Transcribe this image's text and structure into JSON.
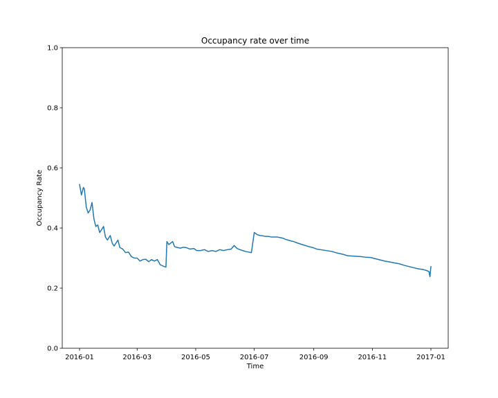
{
  "chart_data": {
    "type": "line",
    "title": "Occupancy rate over time",
    "xlabel": "Time",
    "ylabel": "Occupancy Rate",
    "ylim": [
      0.0,
      1.0
    ],
    "xlim": [
      "2015-12-14",
      "2017-01-19"
    ],
    "yticks": [
      "0.0",
      "0.2",
      "0.4",
      "0.6",
      "0.8",
      "1.0"
    ],
    "ytick_values": [
      0.0,
      0.2,
      0.4,
      0.6,
      0.8,
      1.0
    ],
    "xticks": [
      "2016-01",
      "2016-03",
      "2016-05",
      "2016-07",
      "2016-09",
      "2016-11",
      "2017-01"
    ],
    "xtick_dates": [
      "2016-01-01",
      "2016-03-01",
      "2016-05-01",
      "2016-07-01",
      "2016-09-01",
      "2016-11-01",
      "2017-01-01"
    ],
    "grid": false,
    "series": [
      {
        "color": "#1f77b4",
        "points": [
          [
            "2016-01-01",
            0.545
          ],
          [
            "2016-01-03",
            0.51
          ],
          [
            "2016-01-05",
            0.535
          ],
          [
            "2016-01-06",
            0.53
          ],
          [
            "2016-01-08",
            0.47
          ],
          [
            "2016-01-10",
            0.45
          ],
          [
            "2016-01-12",
            0.46
          ],
          [
            "2016-01-14",
            0.485
          ],
          [
            "2016-01-16",
            0.43
          ],
          [
            "2016-01-18",
            0.405
          ],
          [
            "2016-01-20",
            0.41
          ],
          [
            "2016-01-22",
            0.385
          ],
          [
            "2016-01-24",
            0.395
          ],
          [
            "2016-01-26",
            0.405
          ],
          [
            "2016-01-28",
            0.37
          ],
          [
            "2016-01-30",
            0.36
          ],
          [
            "2016-02-02",
            0.375
          ],
          [
            "2016-02-04",
            0.35
          ],
          [
            "2016-02-06",
            0.34
          ],
          [
            "2016-02-08",
            0.35
          ],
          [
            "2016-02-10",
            0.36
          ],
          [
            "2016-02-12",
            0.335
          ],
          [
            "2016-02-15",
            0.33
          ],
          [
            "2016-02-18",
            0.318
          ],
          [
            "2016-02-21",
            0.32
          ],
          [
            "2016-02-24",
            0.305
          ],
          [
            "2016-02-27",
            0.3
          ],
          [
            "2016-03-01",
            0.3
          ],
          [
            "2016-03-04",
            0.29
          ],
          [
            "2016-03-07",
            0.295
          ],
          [
            "2016-03-10",
            0.296
          ],
          [
            "2016-03-13",
            0.288
          ],
          [
            "2016-03-16",
            0.295
          ],
          [
            "2016-03-19",
            0.29
          ],
          [
            "2016-03-22",
            0.295
          ],
          [
            "2016-03-25",
            0.278
          ],
          [
            "2016-03-27",
            0.275
          ],
          [
            "2016-03-29",
            0.272
          ],
          [
            "2016-03-31",
            0.27
          ],
          [
            "2016-04-01",
            0.355
          ],
          [
            "2016-04-03",
            0.345
          ],
          [
            "2016-04-05",
            0.35
          ],
          [
            "2016-04-07",
            0.355
          ],
          [
            "2016-04-09",
            0.338
          ],
          [
            "2016-04-12",
            0.335
          ],
          [
            "2016-04-15",
            0.333
          ],
          [
            "2016-04-18",
            0.336
          ],
          [
            "2016-04-21",
            0.335
          ],
          [
            "2016-04-25",
            0.33
          ],
          [
            "2016-04-29",
            0.332
          ],
          [
            "2016-05-02",
            0.325
          ],
          [
            "2016-05-06",
            0.325
          ],
          [
            "2016-05-10",
            0.328
          ],
          [
            "2016-05-14",
            0.322
          ],
          [
            "2016-05-18",
            0.325
          ],
          [
            "2016-05-22",
            0.322
          ],
          [
            "2016-05-26",
            0.328
          ],
          [
            "2016-05-30",
            0.325
          ],
          [
            "2016-06-03",
            0.328
          ],
          [
            "2016-06-07",
            0.33
          ],
          [
            "2016-06-10",
            0.342
          ],
          [
            "2016-06-13",
            0.332
          ],
          [
            "2016-06-16",
            0.328
          ],
          [
            "2016-06-19",
            0.325
          ],
          [
            "2016-06-22",
            0.322
          ],
          [
            "2016-06-25",
            0.32
          ],
          [
            "2016-06-28",
            0.318
          ],
          [
            "2016-07-01",
            0.385
          ],
          [
            "2016-07-04",
            0.378
          ],
          [
            "2016-07-07",
            0.375
          ],
          [
            "2016-07-10",
            0.374
          ],
          [
            "2016-07-13",
            0.372
          ],
          [
            "2016-07-16",
            0.372
          ],
          [
            "2016-07-19",
            0.37
          ],
          [
            "2016-07-22",
            0.37
          ],
          [
            "2016-07-25",
            0.37
          ],
          [
            "2016-07-28",
            0.368
          ],
          [
            "2016-07-31",
            0.366
          ],
          [
            "2016-08-03",
            0.362
          ],
          [
            "2016-08-07",
            0.358
          ],
          [
            "2016-08-11",
            0.355
          ],
          [
            "2016-08-15",
            0.35
          ],
          [
            "2016-08-19",
            0.346
          ],
          [
            "2016-08-23",
            0.342
          ],
          [
            "2016-08-27",
            0.338
          ],
          [
            "2016-08-31",
            0.335
          ],
          [
            "2016-09-04",
            0.33
          ],
          [
            "2016-09-08",
            0.328
          ],
          [
            "2016-09-12",
            0.326
          ],
          [
            "2016-09-16",
            0.324
          ],
          [
            "2016-09-20",
            0.322
          ],
          [
            "2016-09-24",
            0.318
          ],
          [
            "2016-09-28",
            0.315
          ],
          [
            "2016-10-02",
            0.312
          ],
          [
            "2016-10-06",
            0.308
          ],
          [
            "2016-10-10",
            0.307
          ],
          [
            "2016-10-15",
            0.306
          ],
          [
            "2016-10-20",
            0.305
          ],
          [
            "2016-10-25",
            0.303
          ],
          [
            "2016-10-30",
            0.302
          ],
          [
            "2016-11-04",
            0.298
          ],
          [
            "2016-11-09",
            0.294
          ],
          [
            "2016-11-14",
            0.29
          ],
          [
            "2016-11-19",
            0.287
          ],
          [
            "2016-11-24",
            0.284
          ],
          [
            "2016-11-29",
            0.281
          ],
          [
            "2016-12-04",
            0.276
          ],
          [
            "2016-12-09",
            0.272
          ],
          [
            "2016-12-14",
            0.268
          ],
          [
            "2016-12-19",
            0.264
          ],
          [
            "2016-12-24",
            0.262
          ],
          [
            "2016-12-28",
            0.258
          ],
          [
            "2016-12-30",
            0.255
          ],
          [
            "2016-12-31",
            0.238
          ],
          [
            "2017-01-01",
            0.272
          ]
        ]
      }
    ]
  }
}
